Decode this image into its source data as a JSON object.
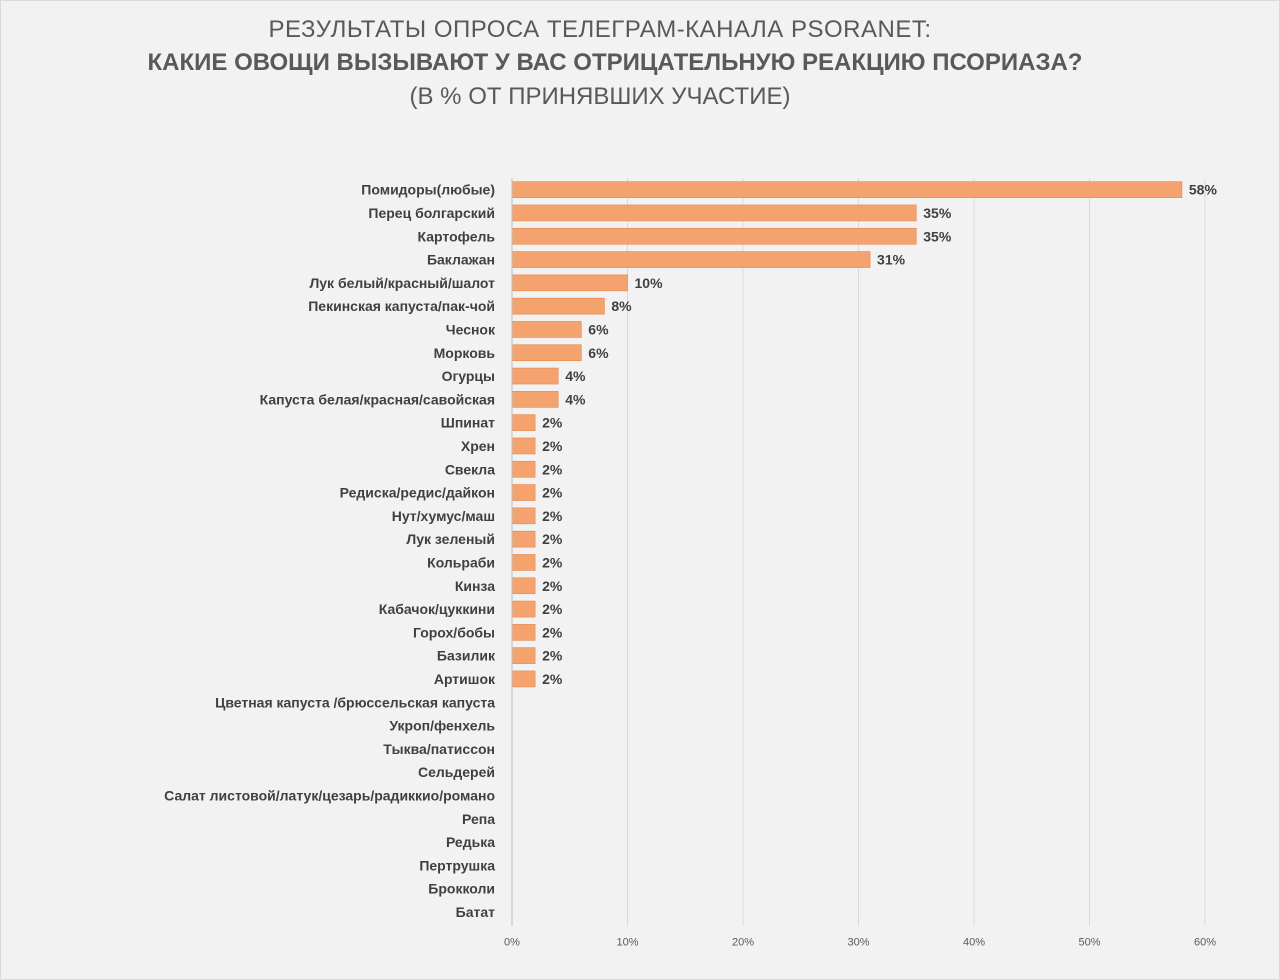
{
  "chart_data": {
    "type": "bar",
    "orientation": "horizontal",
    "title_line1": "РЕЗУЛЬТАТЫ ОПРОСА ТЕЛЕГРАМ-КАНАЛА PSORANET:",
    "title_line2": "КАКИЕ ОВОЩИ ВЫЗЫВАЮТ У ВАС ОТРИЦАТЕЛЬНУЮ РЕАКЦИЮ ПСОРИАЗА?",
    "title_line3": "(В % ОТ ПРИНЯВШИХ УЧАСТИЕ)",
    "categories": [
      "Помидоры(любые)",
      "Перец болгарский",
      "Картофель",
      "Баклажан",
      "Лук белый/красный/шалот",
      "Пекинская капуста/пак-чой",
      "Чеснок",
      "Морковь",
      "Огурцы",
      "Капуста белая/красная/савойская",
      "Шпинат",
      "Хрен",
      "Свекла",
      "Редиска/редис/дайкон",
      "Нут/хумус/маш",
      "Лук зеленый",
      "Кольраби",
      "Кинза",
      "Кабачок/цуккини",
      "Горох/бобы",
      "Базилик",
      "Артишок",
      "Цветная капуста /брюссельская капуста",
      "Укроп/фенхель",
      "Тыква/патиссон",
      "Сельдерей",
      "Салат листовой/латук/цезарь/радиккио/романо",
      "Репа",
      "Редька",
      "Пертрушка",
      "Брокколи",
      "Батат"
    ],
    "values": [
      58,
      35,
      35,
      31,
      10,
      8,
      6,
      6,
      4,
      4,
      2,
      2,
      2,
      2,
      2,
      2,
      2,
      2,
      2,
      2,
      2,
      2,
      0,
      0,
      0,
      0,
      0,
      0,
      0,
      0,
      0,
      0
    ],
    "value_labels": [
      "58%",
      "35%",
      "35%",
      "31%",
      "10%",
      "8%",
      "6%",
      "6%",
      "4%",
      "4%",
      "2%",
      "2%",
      "2%",
      "2%",
      "2%",
      "2%",
      "2%",
      "2%",
      "2%",
      "2%",
      "2%",
      "2%",
      "",
      "",
      "",
      "",
      "",
      "",
      "",
      "",
      "",
      ""
    ],
    "xlim": [
      0,
      60
    ],
    "xticks": [
      0,
      10,
      20,
      30,
      40,
      50,
      60
    ],
    "xtick_labels": [
      "0%",
      "10%",
      "20%",
      "30%",
      "40%",
      "50%",
      "60%"
    ],
    "grid": true,
    "legend": "none",
    "bar_color": "#f4a36e",
    "bar_stroke": "#e8874a",
    "grid_color": "#d9d9d9",
    "text_color": "#404040"
  }
}
